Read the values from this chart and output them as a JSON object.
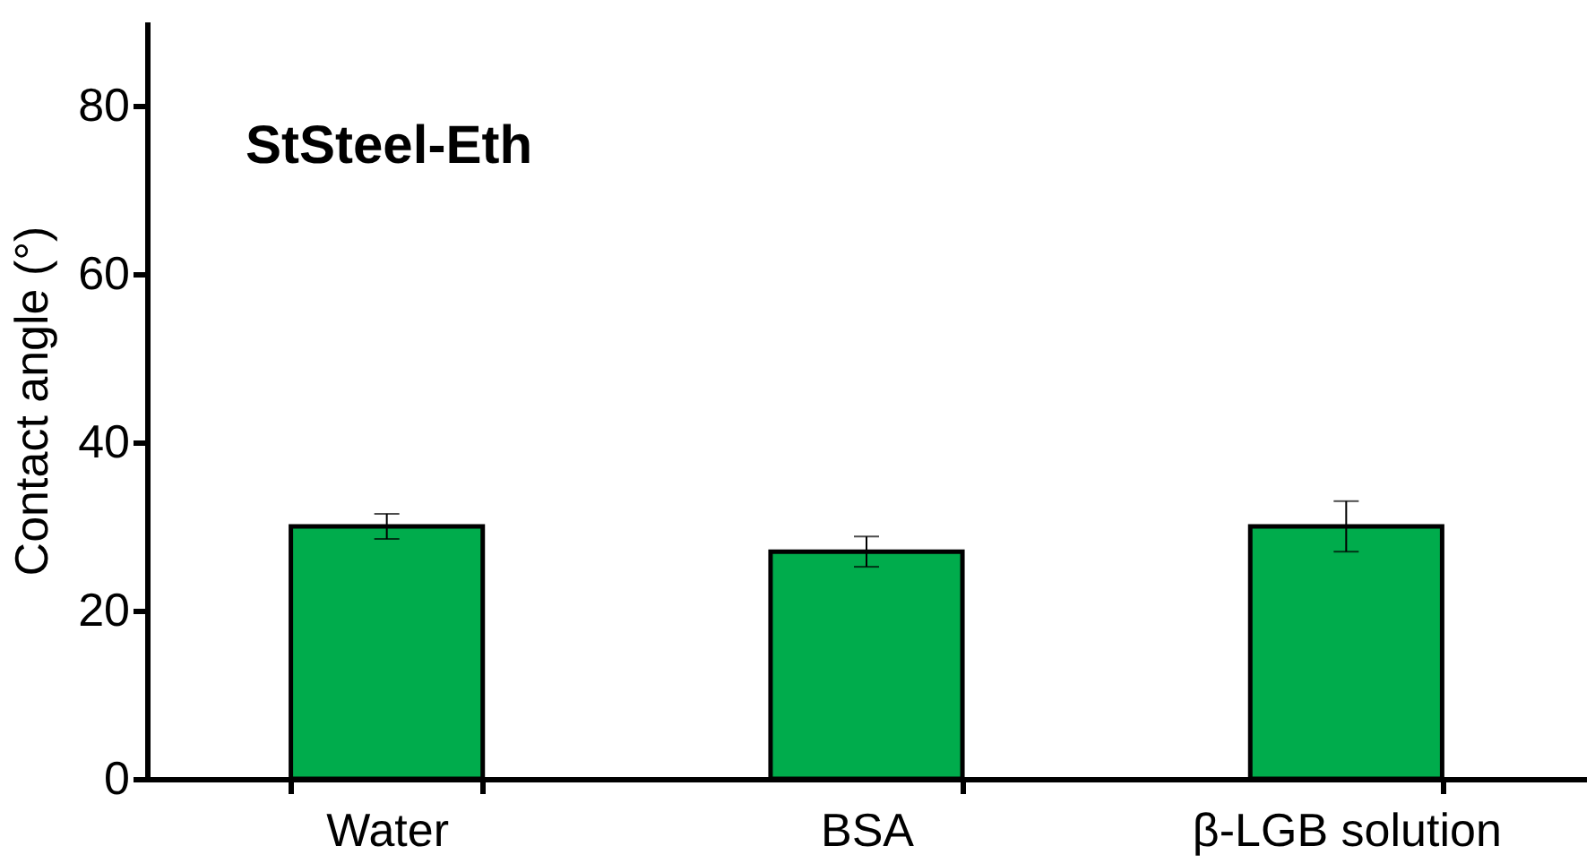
{
  "chart_data": {
    "type": "bar",
    "ylabel": "Contact angle (°)",
    "categories": [
      "Water",
      "BSA",
      "β-LGB solution"
    ],
    "values": [
      30,
      27,
      30
    ],
    "errors": [
      1.5,
      1.8,
      3
    ],
    "colors": [
      "#00ac4c",
      "#00ac4c",
      "#00ac4c"
    ],
    "ylim": [
      0,
      90
    ],
    "yticks": [
      0,
      20,
      40,
      60,
      80
    ],
    "grid": false,
    "annotations": [
      "StSteel-Eth"
    ]
  }
}
